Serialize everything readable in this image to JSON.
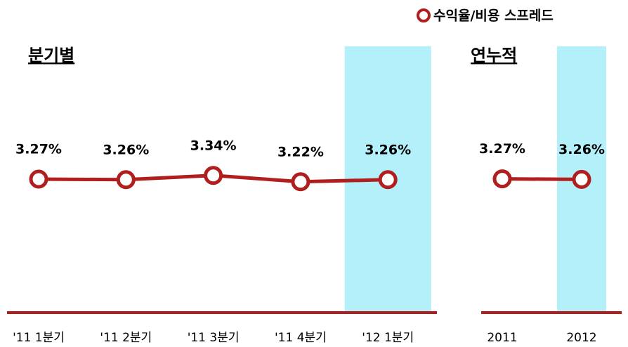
{
  "chart_data": [
    {
      "type": "line",
      "title": "분기별",
      "categories": [
        "'11 1분기",
        "'11 2분기",
        "'11 3분기",
        "'11 4분기",
        "'12 1분기"
      ],
      "series": [
        {
          "name": "수익율/비용 스프레드",
          "color": "#b01e1e",
          "values": [
            3.27,
            3.26,
            3.34,
            3.22,
            3.26
          ],
          "value_labels": [
            "3.27%",
            "3.26%",
            "3.34%",
            "3.22%",
            "3.26%"
          ]
        }
      ],
      "highlight": {
        "index": 4,
        "color": "#b3f0fa"
      }
    },
    {
      "type": "line",
      "title": "연누적",
      "categories": [
        "2011",
        "2012"
      ],
      "series": [
        {
          "color": "#b01e1e",
          "values": [
            3.27,
            3.26
          ],
          "value_labels": [
            "3.27%",
            "3.26%"
          ]
        }
      ],
      "highlight": {
        "index": 1,
        "color": "#b3f0fa"
      }
    }
  ]
}
